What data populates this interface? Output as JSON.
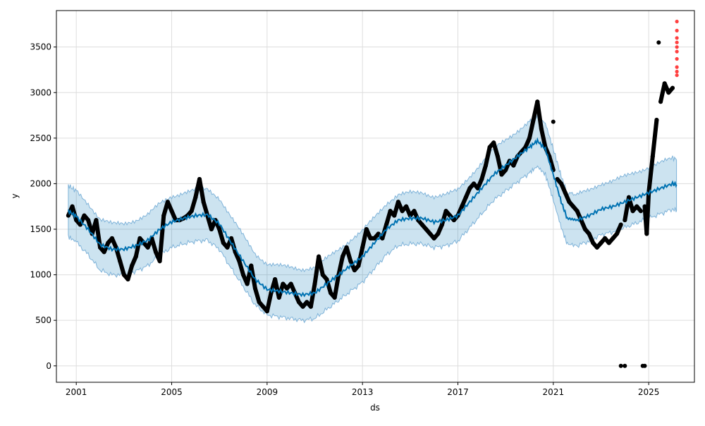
{
  "chart_data": {
    "type": "line",
    "title": "",
    "xlabel": "ds",
    "ylabel": "y",
    "xlim": [
      "2000-03",
      "2026-12"
    ],
    "ylim": [
      -180,
      3900
    ],
    "grid": true,
    "x_ticks": [
      "2001",
      "2005",
      "2009",
      "2013",
      "2017",
      "2021",
      "2025"
    ],
    "y_ticks": [
      0,
      500,
      1000,
      1500,
      2000,
      2500,
      3000,
      3500
    ],
    "colors": {
      "forecast": "#0072B2",
      "interval": "#0072B2",
      "observed": "#000000",
      "highlight": "#ff0000"
    },
    "forecast": {
      "x": [
        "2000-09",
        "2001-01",
        "2001-07",
        "2002-01",
        "2002-07",
        "2003-01",
        "2003-07",
        "2004-01",
        "2004-07",
        "2005-01",
        "2005-07",
        "2006-01",
        "2006-07",
        "2007-01",
        "2007-07",
        "2008-01",
        "2008-07",
        "2009-01",
        "2009-07",
        "2010-01",
        "2010-07",
        "2011-01",
        "2011-07",
        "2012-01",
        "2012-07",
        "2013-01",
        "2013-07",
        "2014-01",
        "2014-07",
        "2015-01",
        "2015-07",
        "2016-01",
        "2016-07",
        "2017-01",
        "2017-07",
        "2018-01",
        "2018-07",
        "2019-01",
        "2019-07",
        "2020-01",
        "2020-05",
        "2020-09",
        "2021-01",
        "2021-05",
        "2021-08",
        "2022-01",
        "2022-07",
        "2023-01",
        "2023-07",
        "2024-01",
        "2024-07",
        "2025-01",
        "2025-07",
        "2026-01",
        "2026-03"
      ],
      "yhat": [
        1700,
        1640,
        1500,
        1330,
        1280,
        1280,
        1320,
        1380,
        1500,
        1580,
        1620,
        1650,
        1660,
        1560,
        1350,
        1150,
        950,
        840,
        820,
        800,
        780,
        800,
        900,
        1000,
        1100,
        1200,
        1350,
        1500,
        1600,
        1620,
        1620,
        1580,
        1600,
        1650,
        1800,
        1950,
        2100,
        2200,
        2300,
        2400,
        2470,
        2380,
        2100,
        1800,
        1620,
        1600,
        1650,
        1720,
        1750,
        1800,
        1850,
        1900,
        1950,
        2000,
        1990
      ],
      "interval_halfwidth": 280
    },
    "observed": [
      [
        "2000-09",
        1650
      ],
      [
        "2000-11",
        1750
      ],
      [
        "2001-01",
        1600
      ],
      [
        "2001-03",
        1550
      ],
      [
        "2001-05",
        1650
      ],
      [
        "2001-07",
        1600
      ],
      [
        "2001-09",
        1450
      ],
      [
        "2001-11",
        1600
      ],
      [
        "2002-01",
        1300
      ],
      [
        "2002-03",
        1250
      ],
      [
        "2002-05",
        1350
      ],
      [
        "2002-07",
        1400
      ],
      [
        "2002-09",
        1300
      ],
      [
        "2002-11",
        1150
      ],
      [
        "2003-01",
        1000
      ],
      [
        "2003-03",
        950
      ],
      [
        "2003-05",
        1100
      ],
      [
        "2003-07",
        1200
      ],
      [
        "2003-09",
        1400
      ],
      [
        "2003-11",
        1350
      ],
      [
        "2004-01",
        1300
      ],
      [
        "2004-03",
        1400
      ],
      [
        "2004-05",
        1250
      ],
      [
        "2004-07",
        1150
      ],
      [
        "2004-09",
        1650
      ],
      [
        "2004-11",
        1800
      ],
      [
        "2005-01",
        1700
      ],
      [
        "2005-03",
        1600
      ],
      [
        "2005-05",
        1600
      ],
      [
        "2005-07",
        1620
      ],
      [
        "2005-09",
        1650
      ],
      [
        "2005-11",
        1700
      ],
      [
        "2006-01",
        1850
      ],
      [
        "2006-03",
        2050
      ],
      [
        "2006-05",
        1800
      ],
      [
        "2006-07",
        1650
      ],
      [
        "2006-09",
        1500
      ],
      [
        "2006-11",
        1600
      ],
      [
        "2007-01",
        1500
      ],
      [
        "2007-03",
        1350
      ],
      [
        "2007-05",
        1300
      ],
      [
        "2007-07",
        1400
      ],
      [
        "2007-09",
        1250
      ],
      [
        "2007-11",
        1150
      ],
      [
        "2008-01",
        1000
      ],
      [
        "2008-03",
        900
      ],
      [
        "2008-05",
        1100
      ],
      [
        "2008-07",
        850
      ],
      [
        "2008-09",
        700
      ],
      [
        "2008-11",
        650
      ],
      [
        "2009-01",
        600
      ],
      [
        "2009-03",
        800
      ],
      [
        "2009-05",
        950
      ],
      [
        "2009-07",
        750
      ],
      [
        "2009-09",
        900
      ],
      [
        "2009-11",
        850
      ],
      [
        "2010-01",
        900
      ],
      [
        "2010-03",
        800
      ],
      [
        "2010-05",
        700
      ],
      [
        "2010-07",
        650
      ],
      [
        "2010-09",
        700
      ],
      [
        "2010-11",
        650
      ],
      [
        "2011-01",
        900
      ],
      [
        "2011-03",
        1200
      ],
      [
        "2011-05",
        1000
      ],
      [
        "2011-07",
        950
      ],
      [
        "2011-09",
        800
      ],
      [
        "2011-11",
        750
      ],
      [
        "2012-01",
        1000
      ],
      [
        "2012-03",
        1200
      ],
      [
        "2012-05",
        1300
      ],
      [
        "2012-07",
        1150
      ],
      [
        "2012-09",
        1050
      ],
      [
        "2012-11",
        1100
      ],
      [
        "2013-01",
        1300
      ],
      [
        "2013-03",
        1500
      ],
      [
        "2013-05",
        1400
      ],
      [
        "2013-07",
        1400
      ],
      [
        "2013-09",
        1450
      ],
      [
        "2013-11",
        1400
      ],
      [
        "2014-01",
        1550
      ],
      [
        "2014-03",
        1700
      ],
      [
        "2014-05",
        1650
      ],
      [
        "2014-07",
        1800
      ],
      [
        "2014-09",
        1700
      ],
      [
        "2014-11",
        1750
      ],
      [
        "2015-01",
        1650
      ],
      [
        "2015-03",
        1700
      ],
      [
        "2015-05",
        1600
      ],
      [
        "2015-07",
        1550
      ],
      [
        "2015-09",
        1500
      ],
      [
        "2015-11",
        1450
      ],
      [
        "2016-01",
        1400
      ],
      [
        "2016-03",
        1450
      ],
      [
        "2016-05",
        1550
      ],
      [
        "2016-07",
        1700
      ],
      [
        "2016-09",
        1650
      ],
      [
        "2016-11",
        1600
      ],
      [
        "2017-01",
        1650
      ],
      [
        "2017-03",
        1750
      ],
      [
        "2017-05",
        1850
      ],
      [
        "2017-07",
        1950
      ],
      [
        "2017-09",
        2000
      ],
      [
        "2017-11",
        1950
      ],
      [
        "2018-01",
        2050
      ],
      [
        "2018-03",
        2200
      ],
      [
        "2018-05",
        2400
      ],
      [
        "2018-07",
        2450
      ],
      [
        "2018-09",
        2300
      ],
      [
        "2018-11",
        2100
      ],
      [
        "2019-01",
        2150
      ],
      [
        "2019-03",
        2250
      ],
      [
        "2019-05",
        2200
      ],
      [
        "2019-07",
        2300
      ],
      [
        "2019-09",
        2350
      ],
      [
        "2019-11",
        2400
      ],
      [
        "2020-01",
        2500
      ],
      [
        "2020-03",
        2700
      ],
      [
        "2020-05",
        2900
      ],
      [
        "2020-07",
        2600
      ],
      [
        "2020-09",
        2400
      ],
      [
        "2020-11",
        2300
      ],
      [
        "2021-01",
        2150
      ],
      [
        "2021-01",
        2680
      ],
      [
        "2021-03",
        2050
      ],
      [
        "2021-05",
        2000
      ],
      [
        "2021-07",
        1900
      ],
      [
        "2021-09",
        1800
      ],
      [
        "2021-11",
        1750
      ],
      [
        "2022-01",
        1700
      ],
      [
        "2022-03",
        1600
      ],
      [
        "2022-05",
        1500
      ],
      [
        "2022-07",
        1450
      ],
      [
        "2022-09",
        1350
      ],
      [
        "2022-11",
        1300
      ],
      [
        "2023-01",
        1350
      ],
      [
        "2023-03",
        1400
      ],
      [
        "2023-05",
        1350
      ],
      [
        "2023-07",
        1400
      ],
      [
        "2023-09",
        1450
      ],
      [
        "2023-11",
        1550
      ],
      [
        "2023-11",
        0
      ],
      [
        "2024-01",
        0
      ],
      [
        "2024-01",
        1600
      ],
      [
        "2024-03",
        1850
      ],
      [
        "2024-05",
        1700
      ],
      [
        "2024-07",
        1750
      ],
      [
        "2024-09",
        1700
      ],
      [
        "2024-10",
        0
      ],
      [
        "2024-11",
        0
      ],
      [
        "2024-11",
        1750
      ],
      [
        "2024-12",
        1450
      ],
      [
        "2025-01",
        1900
      ],
      [
        "2025-03",
        2300
      ],
      [
        "2025-05",
        2700
      ],
      [
        "2025-06",
        3550
      ],
      [
        "2025-07",
        2900
      ],
      [
        "2025-09",
        3100
      ],
      [
        "2025-11",
        3000
      ],
      [
        "2026-01",
        3050
      ]
    ],
    "highlighted": [
      [
        "2026-03",
        3780
      ],
      [
        "2026-03",
        3680
      ],
      [
        "2026-03",
        3600
      ],
      [
        "2026-03",
        3550
      ],
      [
        "2026-03",
        3500
      ],
      [
        "2026-03",
        3450
      ],
      [
        "2026-03",
        3370
      ],
      [
        "2026-03",
        3280
      ],
      [
        "2026-03",
        3230
      ],
      [
        "2026-03",
        3190
      ]
    ]
  }
}
